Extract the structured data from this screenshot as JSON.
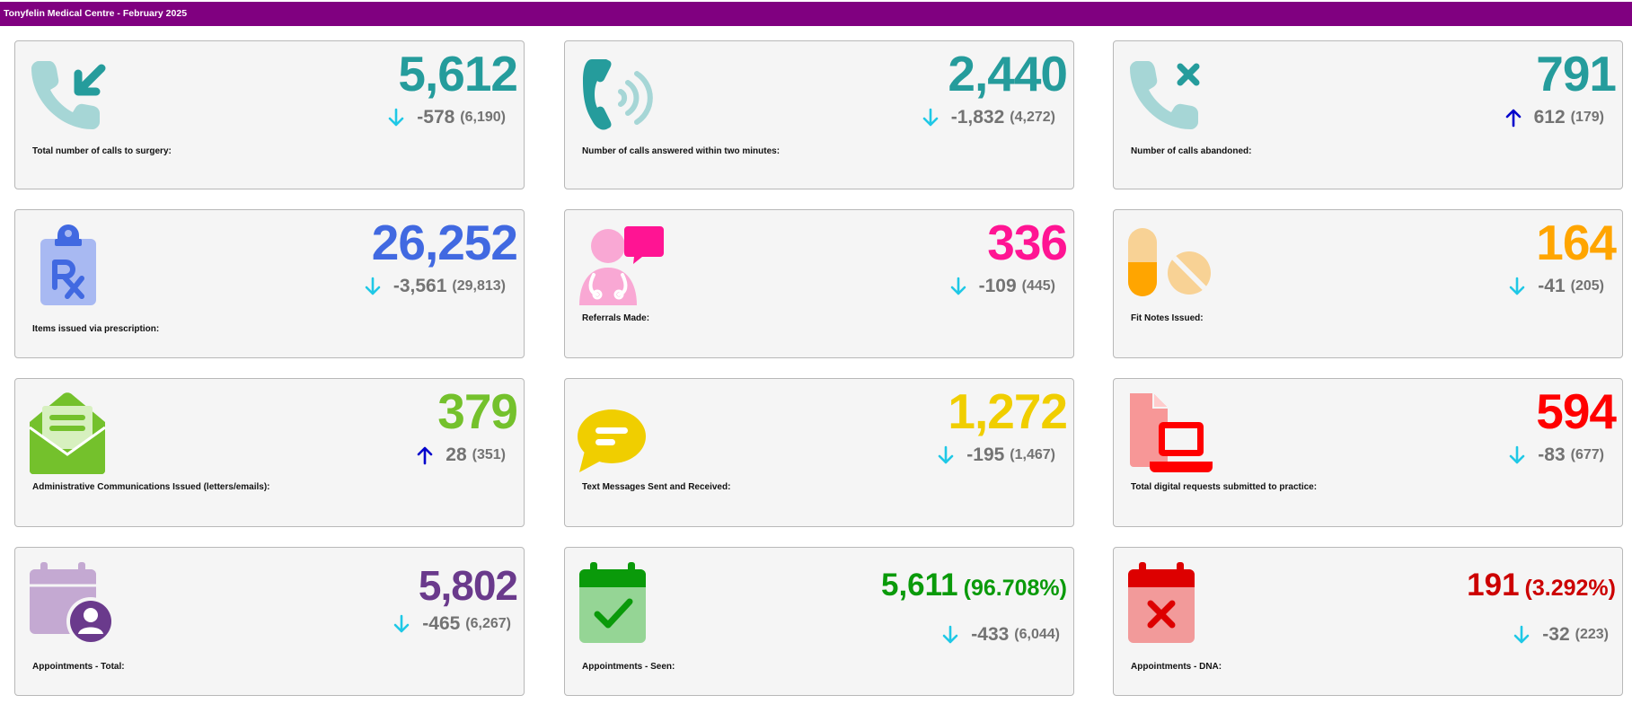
{
  "header": {
    "title": "Tonyfelin Medical Centre - February 2025"
  },
  "cards": [
    {
      "id": "calls-total",
      "value": "5,612",
      "value_color": "#259c9c",
      "trend": "down",
      "delta": "-578",
      "previous": "(6,190)",
      "label": "Total number of calls to surgery:",
      "icon": "incoming-call-icon"
    },
    {
      "id": "calls-answered",
      "value": "2,440",
      "value_color": "#259c9c",
      "trend": "down",
      "delta": "-1,832",
      "previous": "(4,272)",
      "label": "Number of calls answered within two minutes:",
      "icon": "phone-ringing-icon"
    },
    {
      "id": "calls-abandoned",
      "value": "791",
      "value_color": "#259c9c",
      "trend": "up",
      "delta": "612",
      "previous": "(179)",
      "label": "Number of calls abandoned:",
      "icon": "missed-call-icon"
    },
    {
      "id": "prescriptions",
      "value": "26,252",
      "value_color": "#4169e1",
      "trend": "down",
      "delta": "-3,561",
      "previous": "(29,813)",
      "label": "Items issued via prescription:",
      "icon": "prescription-clipboard-icon"
    },
    {
      "id": "referrals",
      "value": "336",
      "value_color": "#ff1493",
      "trend": "down",
      "delta": "-109",
      "previous": "(445)",
      "label": "Referrals Made:",
      "icon": "doctor-chat-icon"
    },
    {
      "id": "fit-notes",
      "value": "164",
      "value_color": "#ffa500",
      "trend": "down",
      "delta": "-41",
      "previous": "(205)",
      "label": "Fit Notes Issued:",
      "icon": "pills-icon"
    },
    {
      "id": "admin-comms",
      "value": "379",
      "value_color": "#74c12c",
      "trend": "up",
      "delta": "28",
      "previous": "(351)",
      "label": "Administrative Communications Issued (letters/emails):",
      "icon": "open-envelope-icon"
    },
    {
      "id": "text-messages",
      "value": "1,272",
      "value_color": "#f0ce00",
      "trend": "down",
      "delta": "-195",
      "previous": "(1,467)",
      "label": "Text Messages Sent and Received:",
      "icon": "speech-bubble-icon"
    },
    {
      "id": "digital-requests",
      "value": "594",
      "value_color": "#ff0000",
      "trend": "down",
      "delta": "-83",
      "previous": "(677)",
      "label": "Total digital requests submitted to practice:",
      "icon": "document-laptop-icon"
    },
    {
      "id": "appointments-total",
      "value": "5,802",
      "value_color": "#6a3a8c",
      "trend": "down",
      "delta": "-465",
      "previous": "(6,267)",
      "label": "Appointments - Total:",
      "icon": "calendar-person-icon"
    },
    {
      "id": "appointments-seen",
      "value": "5,611",
      "percent": "(96.708%)",
      "value_color": "#0a9a0a",
      "trend": "down",
      "delta": "-433",
      "previous": "(6,044)",
      "label": "Appointments - Seen:",
      "icon": "calendar-check-icon"
    },
    {
      "id": "appointments-dna",
      "value": "191",
      "percent": "(3.292%)",
      "value_color": "#cc0000",
      "trend": "down",
      "delta": "-32",
      "previous": "(223)",
      "label": "Appointments - DNA:",
      "icon": "calendar-cross-icon"
    }
  ],
  "trend_colors": {
    "down": "#1fc8e6",
    "up": "#0000cc"
  }
}
